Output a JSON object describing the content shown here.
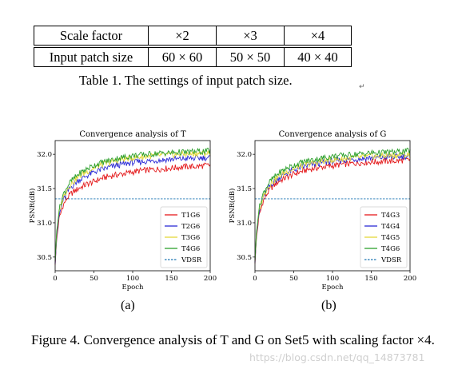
{
  "table": {
    "rows": [
      [
        "Scale factor",
        "×2",
        "×3",
        "×4"
      ],
      [
        "Input patch size",
        "60 × 60",
        "50 × 50",
        "40 × 40"
      ]
    ],
    "caption": "Table 1. The settings of input patch size.",
    "return_mark": "↵"
  },
  "figure": {
    "caption": "Figure 4. Convergence analysis of T and G on Set5 with scaling factor ×4.",
    "watermark": "https://blog.csdn.net/qq_14873781",
    "sub_labels": [
      "(a)",
      "(b)"
    ]
  },
  "chart_data": [
    {
      "type": "line",
      "title": "Convergence analysis of T",
      "xlabel": "Epoch",
      "ylabel": "PSNR(dB)",
      "xlim": [
        0,
        200
      ],
      "ylim": [
        30.3,
        32.2
      ],
      "xticks": [
        0,
        50,
        100,
        150,
        200
      ],
      "yticks": [
        30.5,
        31.0,
        31.5,
        32.0
      ],
      "grid": false,
      "legend": "bottom-right",
      "series": [
        {
          "name": "T1G6",
          "color": "#e41a1c",
          "style": "solid",
          "x": [
            0,
            2,
            5,
            10,
            15,
            20,
            30,
            40,
            50,
            60,
            70,
            80,
            90,
            100,
            110,
            120,
            130,
            140,
            150,
            160,
            170,
            180,
            190,
            200
          ],
          "y": [
            30.4,
            30.75,
            31.05,
            31.25,
            31.35,
            31.42,
            31.5,
            31.56,
            31.6,
            31.65,
            31.68,
            31.7,
            31.72,
            31.74,
            31.76,
            31.77,
            31.78,
            31.79,
            31.8,
            31.81,
            31.82,
            31.82,
            31.83,
            31.84
          ]
        },
        {
          "name": "T2G6",
          "color": "#2b2bd6",
          "style": "solid",
          "x": [
            0,
            2,
            5,
            10,
            15,
            20,
            30,
            40,
            50,
            60,
            70,
            80,
            90,
            100,
            110,
            120,
            130,
            140,
            150,
            160,
            170,
            180,
            190,
            200
          ],
          "y": [
            30.42,
            30.8,
            31.1,
            31.32,
            31.43,
            31.52,
            31.62,
            31.68,
            31.74,
            31.78,
            31.81,
            31.84,
            31.86,
            31.88,
            31.89,
            31.9,
            31.91,
            31.92,
            31.93,
            31.93,
            31.94,
            31.94,
            31.95,
            31.95
          ]
        },
        {
          "name": "T3G6",
          "color": "#e5d93a",
          "style": "solid",
          "x": [
            0,
            2,
            5,
            10,
            15,
            20,
            30,
            40,
            50,
            60,
            70,
            80,
            90,
            100,
            110,
            120,
            130,
            140,
            150,
            160,
            170,
            180,
            190,
            200
          ],
          "y": [
            30.45,
            30.85,
            31.15,
            31.36,
            31.48,
            31.56,
            31.67,
            31.74,
            31.8,
            31.85,
            31.88,
            31.91,
            31.93,
            31.95,
            31.96,
            31.97,
            31.98,
            31.99,
            31.99,
            32.0,
            32.0,
            32.01,
            32.01,
            32.02
          ]
        },
        {
          "name": "T4G6",
          "color": "#2ca02c",
          "style": "solid",
          "x": [
            0,
            2,
            5,
            10,
            15,
            20,
            30,
            40,
            50,
            60,
            70,
            80,
            90,
            100,
            110,
            120,
            130,
            140,
            150,
            160,
            170,
            180,
            190,
            200
          ],
          "y": [
            30.45,
            30.88,
            31.18,
            31.4,
            31.52,
            31.6,
            31.71,
            31.78,
            31.84,
            31.88,
            31.91,
            31.94,
            31.96,
            31.98,
            31.99,
            32.0,
            32.01,
            32.02,
            32.02,
            32.03,
            32.03,
            32.04,
            32.04,
            32.05
          ]
        },
        {
          "name": "VDSR",
          "color": "#1f77b4",
          "style": "dashed",
          "x": [
            0,
            200
          ],
          "y": [
            31.35,
            31.35
          ]
        }
      ]
    },
    {
      "type": "line",
      "title": "Convergence analysis of G",
      "xlabel": "Epoch",
      "ylabel": "PSNR(dB)",
      "xlim": [
        0,
        200
      ],
      "ylim": [
        30.3,
        32.2
      ],
      "xticks": [
        0,
        50,
        100,
        150,
        200
      ],
      "yticks": [
        30.5,
        31.0,
        31.5,
        32.0
      ],
      "grid": false,
      "legend": "bottom-right",
      "series": [
        {
          "name": "T4G3",
          "color": "#e41a1c",
          "style": "solid",
          "x": [
            0,
            2,
            5,
            10,
            15,
            20,
            30,
            40,
            50,
            60,
            70,
            80,
            90,
            100,
            110,
            120,
            130,
            140,
            150,
            160,
            170,
            180,
            190,
            200
          ],
          "y": [
            30.42,
            30.78,
            31.08,
            31.3,
            31.41,
            31.5,
            31.6,
            31.66,
            31.71,
            31.75,
            31.78,
            31.8,
            31.82,
            31.83,
            31.85,
            31.86,
            31.87,
            31.88,
            31.89,
            31.89,
            31.9,
            31.9,
            31.91,
            31.92
          ]
        },
        {
          "name": "T4G4",
          "color": "#2b2bd6",
          "style": "solid",
          "x": [
            0,
            2,
            5,
            10,
            15,
            20,
            30,
            40,
            50,
            60,
            70,
            80,
            90,
            100,
            110,
            120,
            130,
            140,
            150,
            160,
            170,
            180,
            190,
            200
          ],
          "y": [
            30.44,
            30.82,
            31.12,
            31.35,
            31.46,
            31.55,
            31.65,
            31.72,
            31.77,
            31.81,
            31.84,
            31.86,
            31.88,
            31.9,
            31.91,
            31.92,
            31.93,
            31.94,
            31.95,
            31.95,
            31.96,
            31.96,
            31.97,
            31.97
          ]
        },
        {
          "name": "T4G5",
          "color": "#e5d93a",
          "style": "solid",
          "x": [
            0,
            2,
            5,
            10,
            15,
            20,
            30,
            40,
            50,
            60,
            70,
            80,
            90,
            100,
            110,
            120,
            130,
            140,
            150,
            160,
            170,
            180,
            190,
            200
          ],
          "y": [
            30.45,
            30.85,
            31.15,
            31.37,
            31.49,
            31.57,
            31.67,
            31.74,
            31.79,
            31.83,
            31.86,
            31.88,
            31.9,
            31.92,
            31.93,
            31.94,
            31.95,
            31.96,
            31.97,
            31.97,
            31.98,
            31.98,
            31.99,
            31.99
          ]
        },
        {
          "name": "T4G6",
          "color": "#2ca02c",
          "style": "solid",
          "x": [
            0,
            2,
            5,
            10,
            15,
            20,
            30,
            40,
            50,
            60,
            70,
            80,
            90,
            100,
            110,
            120,
            130,
            140,
            150,
            160,
            170,
            180,
            190,
            200
          ],
          "y": [
            30.46,
            30.88,
            31.19,
            31.41,
            31.53,
            31.61,
            31.72,
            31.79,
            31.84,
            31.88,
            31.91,
            31.93,
            31.95,
            31.97,
            31.98,
            31.99,
            32.0,
            32.01,
            32.02,
            32.02,
            32.03,
            32.03,
            32.04,
            32.05
          ]
        },
        {
          "name": "VDSR",
          "color": "#1f77b4",
          "style": "dashed",
          "x": [
            0,
            200
          ],
          "y": [
            31.35,
            31.35
          ]
        }
      ]
    }
  ]
}
